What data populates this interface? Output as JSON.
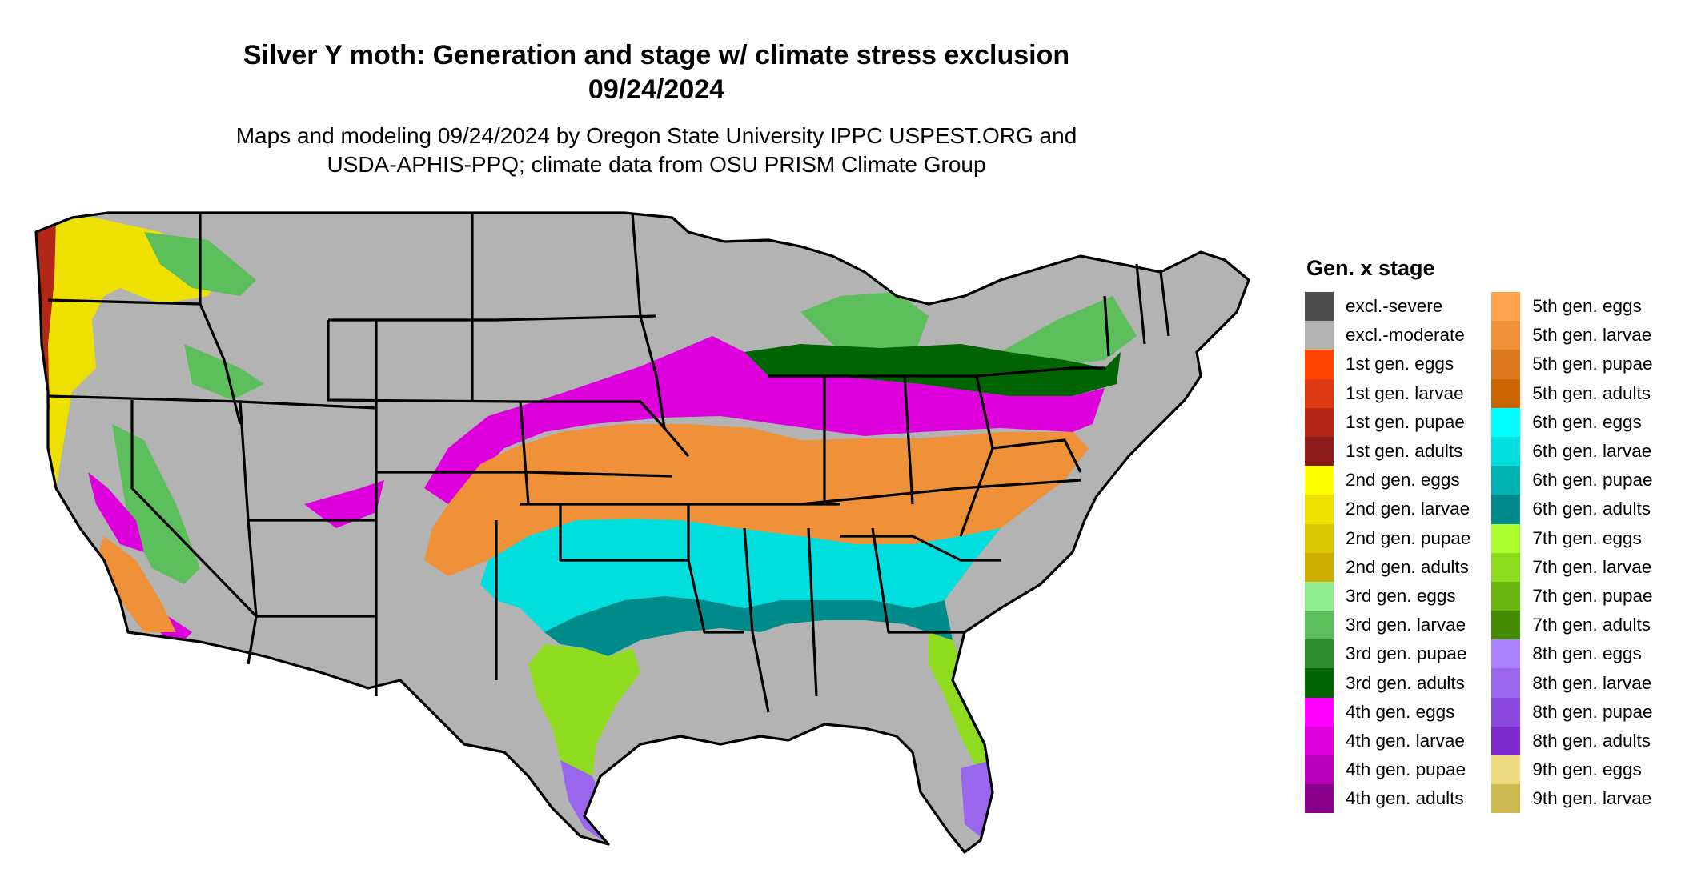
{
  "header": {
    "title_line1": "Silver Y moth: Generation and stage w/ climate stress exclusion",
    "title_line2": "09/24/2024",
    "subtitle_line1": "Maps and modeling 09/24/2024 by Oregon State University IPPC USPEST.ORG and",
    "subtitle_line2": "USDA-APHIS-PPQ; climate data from OSU PRISM Climate Group"
  },
  "legend": {
    "title": "Gen. x stage",
    "columns": [
      [
        {
          "label": "excl.-severe",
          "color": "#4d4d4d"
        },
        {
          "label": "excl.-moderate",
          "color": "#b3b3b3"
        },
        {
          "label": "1st gen. eggs",
          "color": "#ff4500"
        },
        {
          "label": "1st gen. larvae",
          "color": "#dc3912"
        },
        {
          "label": "1st gen. pupae",
          "color": "#b22718"
        },
        {
          "label": "1st gen. adults",
          "color": "#8b1a1a"
        },
        {
          "label": "2nd gen. eggs",
          "color": "#ffff00"
        },
        {
          "label": "2nd gen. larvae",
          "color": "#eee000"
        },
        {
          "label": "2nd gen. pupae",
          "color": "#dcc800"
        },
        {
          "label": "2nd gen. adults",
          "color": "#cdad00"
        },
        {
          "label": "3rd gen. eggs",
          "color": "#90ee90"
        },
        {
          "label": "3rd gen. larvae",
          "color": "#5cbf5c"
        },
        {
          "label": "3rd gen. pupae",
          "color": "#2e8b2e"
        },
        {
          "label": "3rd gen. adults",
          "color": "#006400"
        },
        {
          "label": "4th gen. eggs",
          "color": "#ff00ff"
        },
        {
          "label": "4th gen. larvae",
          "color": "#dd00dd"
        },
        {
          "label": "4th gen. pupae",
          "color": "#b800b8"
        },
        {
          "label": "4th gen. adults",
          "color": "#8b008b"
        }
      ],
      [
        {
          "label": "5th gen. eggs",
          "color": "#ffa54f"
        },
        {
          "label": "5th gen. larvae",
          "color": "#ee9138"
        },
        {
          "label": "5th gen. pupae",
          "color": "#dd7a20"
        },
        {
          "label": "5th gen. adults",
          "color": "#cd6600"
        },
        {
          "label": "6th gen. eggs",
          "color": "#00ffff"
        },
        {
          "label": "6th gen. larvae",
          "color": "#00dede"
        },
        {
          "label": "6th gen. pupae",
          "color": "#00b3b3"
        },
        {
          "label": "6th gen. adults",
          "color": "#008b8b"
        },
        {
          "label": "7th gen. eggs",
          "color": "#adff2f"
        },
        {
          "label": "7th gen. larvae",
          "color": "#8fdc1f"
        },
        {
          "label": "7th gen. pupae",
          "color": "#6ab50f"
        },
        {
          "label": "7th gen. adults",
          "color": "#458b00"
        },
        {
          "label": "8th gen. eggs",
          "color": "#ab82ff"
        },
        {
          "label": "8th gen. larvae",
          "color": "#9a66ee"
        },
        {
          "label": "8th gen. pupae",
          "color": "#8a48dd"
        },
        {
          "label": "8th gen. adults",
          "color": "#7b28cc"
        },
        {
          "label": "9th gen. eggs",
          "color": "#eedc82"
        },
        {
          "label": "9th gen. larvae",
          "color": "#cdba50"
        }
      ]
    ]
  },
  "map": {
    "region": "contiguous-us",
    "layers": [
      {
        "name": "excluded-moderate-interior",
        "color": "#b3b3b3"
      },
      {
        "name": "west-coast-2nd-gen",
        "color": "#eee000"
      },
      {
        "name": "pacific-northwest-1st-gen",
        "color": "#b22718"
      },
      {
        "name": "northern-band-3rd-gen",
        "color": "#5cbf5c"
      },
      {
        "name": "midwest-3rd-gen-adults",
        "color": "#006400"
      },
      {
        "name": "central-band-4th-gen",
        "color": "#dd00dd"
      },
      {
        "name": "southern-band-5th-gen",
        "color": "#ee9138"
      },
      {
        "name": "gulf-band-6th-gen",
        "color": "#00dede"
      },
      {
        "name": "gulf-coast-6th-gen-adults",
        "color": "#008b8b"
      },
      {
        "name": "south-texas-florida-7th-gen",
        "color": "#8fdc1f"
      },
      {
        "name": "tips-8th-gen",
        "color": "#9a66ee"
      }
    ]
  }
}
